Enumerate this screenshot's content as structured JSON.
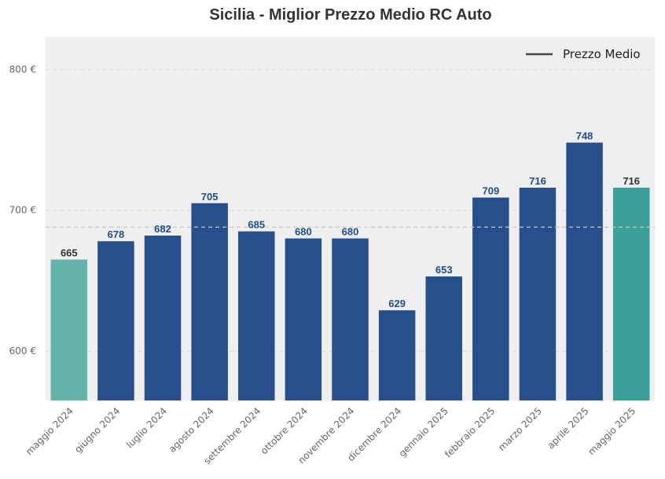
{
  "chart_data": {
    "type": "bar",
    "title": "Sicilia - Miglior Prezzo Medio RC Auto",
    "xlabel": "",
    "ylabel": "",
    "categories": [
      "maggio 2024",
      "giugno 2024",
      "luglio 2024",
      "agosto 2024",
      "settembre 2024",
      "ottobre 2024",
      "novembre 2024",
      "dicembre 2024",
      "gennaio 2025",
      "febbraio 2025",
      "marzo 2025",
      "aprile 2025",
      "maggio 2025"
    ],
    "values": [
      665,
      678,
      682,
      705,
      685,
      680,
      680,
      629,
      653,
      709,
      716,
      748,
      716
    ],
    "value_labels": [
      "665",
      "678",
      "682",
      "705",
      "685",
      "680",
      "680",
      "629",
      "653",
      "709",
      "716",
      "748",
      "716"
    ],
    "bar_colors": [
      "#63b2ab",
      "#274f8c",
      "#274f8c",
      "#274f8c",
      "#274f8c",
      "#274f8c",
      "#274f8c",
      "#274f8c",
      "#274f8c",
      "#274f8c",
      "#274f8c",
      "#274f8c",
      "#3ba098"
    ],
    "label_colors": [
      "#333333",
      "#1f4e8a",
      "#1f4e8a",
      "#1f4e8a",
      "#1f4e8a",
      "#1f4e8a",
      "#1f4e8a",
      "#1f4e8a",
      "#1f4e8a",
      "#1f4e8a",
      "#1f4e8a",
      "#1f4e8a",
      "#333333"
    ],
    "ylim": [
      565,
      823
    ],
    "yticks": [
      600,
      700,
      800
    ],
    "ytick_labels": [
      "600 €",
      "700 €",
      "800 €"
    ],
    "average_line": 688,
    "grid": true,
    "legend": {
      "position": "top-right",
      "entries": [
        {
          "label": "Prezzo Medio",
          "color": "#444444"
        }
      ]
    }
  }
}
